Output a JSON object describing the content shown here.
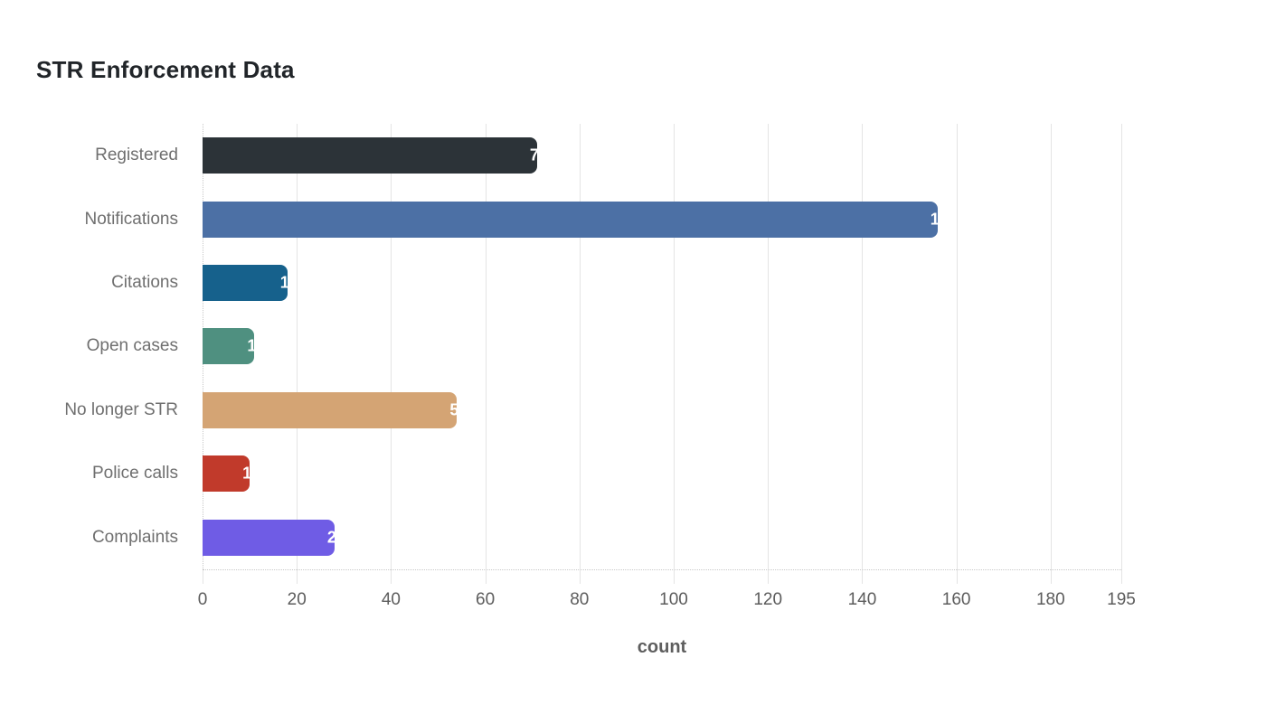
{
  "title": "STR Enforcement Data",
  "chart_data": {
    "type": "bar",
    "orientation": "horizontal",
    "title": "STR Enforcement Data",
    "xlabel": "count",
    "ylabel": "",
    "categories": [
      "Registered",
      "Notifications",
      "Citations",
      "Open cases",
      "No longer STR",
      "Police calls",
      "Complaints"
    ],
    "values": [
      71,
      156,
      18,
      11,
      54,
      10,
      28
    ],
    "bar_colors": [
      "#2c3338",
      "#4c70a5",
      "#16618c",
      "#4f9080",
      "#d4a474",
      "#c13a2b",
      "#6f5ce5"
    ],
    "xlim": [
      0,
      195
    ],
    "xticks": [
      0,
      20,
      40,
      60,
      80,
      100,
      120,
      140,
      160,
      180,
      195
    ],
    "grid": true,
    "legend": "none",
    "value_label_style": "white text clipped at bar end",
    "colors": {
      "gridline": "#e4e4e4",
      "axis_dotted": "#c8c8c8",
      "title_text": "#212529",
      "category_text": "#6f6f6f",
      "tick_text": "#5c5c5c",
      "axis_title_text": "#5e5e5e",
      "background": "#ffffff"
    }
  }
}
